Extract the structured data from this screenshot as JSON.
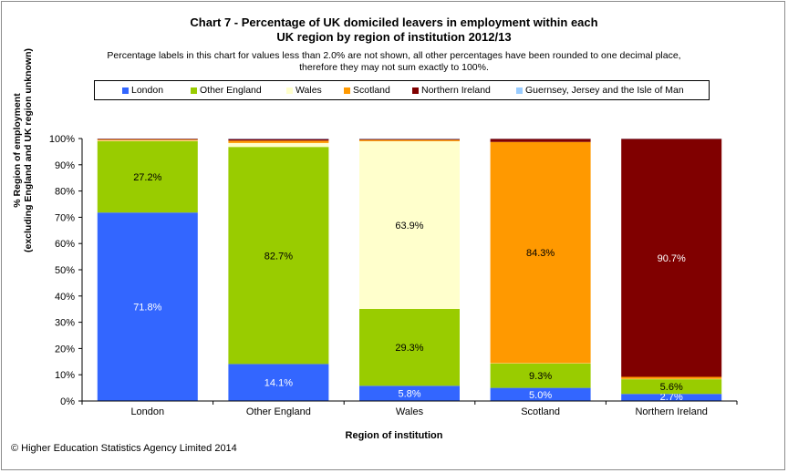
{
  "title_line1": "Chart 7 - Percentage of UK domiciled leavers in employment within each",
  "title_line2": "UK region by region of institution  2012/13",
  "note_line1": "Percentage labels in this chart for values less than 2.0% are not shown, all other percentages have been rounded to one decimal place,",
  "note_line2": "therefore they may not sum exactly to 100%.",
  "copyright": "© Higher Education Statistics Agency Limited 2014",
  "colors": {
    "London": "#3366ff",
    "Other England": "#99cc00",
    "Wales": "#ffffcc",
    "Scotland": "#ff9900",
    "Northern Ireland": "#800000",
    "Guernsey, Jersey and the Isle of Man": "#99ccff"
  },
  "chart_data": {
    "type": "bar",
    "stacked": true,
    "title": "Chart 7 - Percentage of UK domiciled leavers in employment within each UK region by region of institution  2012/13",
    "xlabel": "Region of institution",
    "ylabel_line1": "% Region of employment",
    "ylabel_line2": "(excluding England and UK region unknown)",
    "ylim": [
      0,
      100
    ],
    "yticks": [
      "0%",
      "10%",
      "20%",
      "30%",
      "40%",
      "50%",
      "60%",
      "70%",
      "80%",
      "90%",
      "100%"
    ],
    "legend_position": "top",
    "categories": [
      "London",
      "Other England",
      "Wales",
      "Scotland",
      "Northern Ireland"
    ],
    "series": [
      {
        "name": "London",
        "values": [
          71.8,
          14.1,
          5.8,
          5.0,
          2.7
        ],
        "labels": [
          "71.8%",
          "14.1%",
          "5.8%",
          "5.0%",
          "2.7%"
        ]
      },
      {
        "name": "Other England",
        "values": [
          27.2,
          82.7,
          29.3,
          9.3,
          5.6
        ],
        "labels": [
          "27.2%",
          "82.7%",
          "29.3%",
          "9.3%",
          "5.6%"
        ]
      },
      {
        "name": "Wales",
        "values": [
          0.2,
          1.5,
          63.9,
          0.1,
          0.1
        ],
        "labels": [
          "",
          "",
          "63.9%",
          "",
          ""
        ]
      },
      {
        "name": "Scotland",
        "values": [
          0.4,
          0.9,
          0.5,
          84.3,
          0.8
        ],
        "labels": [
          "",
          "",
          "",
          "84.3%",
          ""
        ]
      },
      {
        "name": "Northern Ireland",
        "values": [
          0.3,
          0.6,
          0.3,
          1.2,
          90.7
        ],
        "labels": [
          "",
          "",
          "",
          "",
          "90.7%"
        ]
      },
      {
        "name": "Guernsey, Jersey and the Isle of Man",
        "values": [
          0.1,
          0.2,
          0.2,
          0.1,
          0.1
        ],
        "labels": [
          "",
          "",
          "",
          "",
          ""
        ]
      }
    ]
  }
}
